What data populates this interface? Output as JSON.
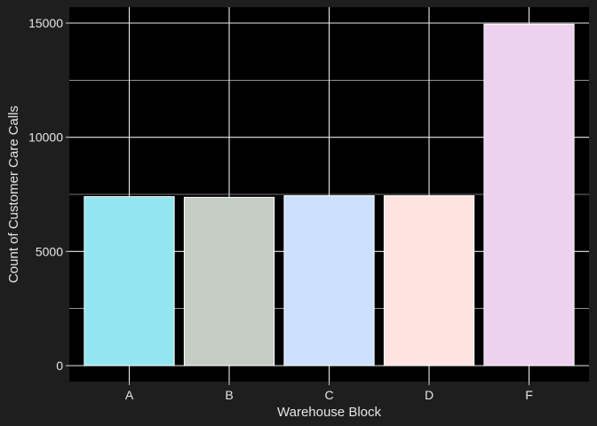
{
  "chart_data": {
    "type": "bar",
    "xlabel": "Warehouse Block",
    "ylabel": "Count of Customer Care Calls",
    "categories": [
      "A",
      "B",
      "C",
      "D",
      "F"
    ],
    "values": [
      7400,
      7370,
      7440,
      7440,
      14950
    ],
    "colors": [
      "#93e5ef",
      "#c4ccc4",
      "#cce0ff",
      "#ffe4e1",
      "#edd1ef"
    ],
    "ylim": [
      -700,
      15700
    ],
    "yticks": [
      0,
      5000,
      10000,
      15000
    ],
    "ytick_labels": [
      "0",
      "5000",
      "10000",
      "15000"
    ],
    "grid": true,
    "panel_background": "#000000",
    "page_background": "#1e1e1e",
    "grid_color": "#e8e8e8",
    "text_color": "#e6e6e6"
  }
}
